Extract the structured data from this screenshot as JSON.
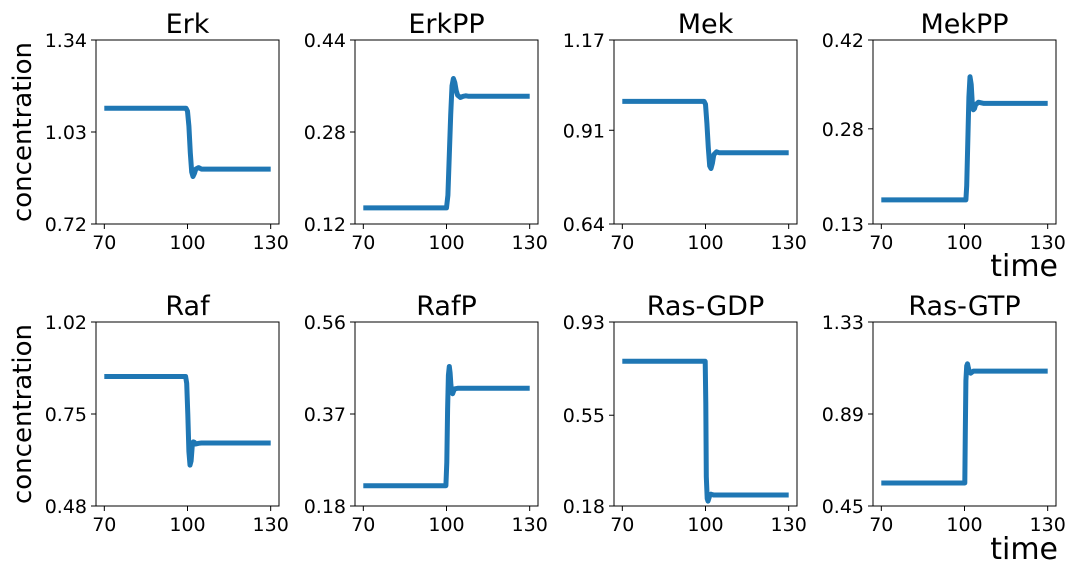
{
  "figure": {
    "ylabel": "concentration",
    "xlabel": "time",
    "line_color": "#1f77b4"
  },
  "chart_data": [
    {
      "type": "line",
      "title": "Erk",
      "xlim": [
        70,
        130
      ],
      "xticks": [
        "70",
        "100",
        "130"
      ],
      "ylim": [
        0.72,
        1.34
      ],
      "yticks": [
        "0.72",
        "1.03",
        "1.34"
      ],
      "x": [
        70,
        99.5,
        100,
        100.5,
        101,
        101.5,
        102,
        102.5,
        103,
        104,
        105,
        106,
        107,
        108,
        110,
        113,
        130
      ],
      "y": [
        1.11,
        1.11,
        1.1,
        1.05,
        0.96,
        0.895,
        0.88,
        0.89,
        0.905,
        0.91,
        0.905,
        0.905,
        0.905,
        0.905,
        0.905,
        0.905,
        0.905
      ]
    },
    {
      "type": "line",
      "title": "ErkPP",
      "xlim": [
        70,
        130
      ],
      "xticks": [
        "70",
        "100",
        "130"
      ],
      "ylim": [
        0.12,
        0.44
      ],
      "yticks": [
        "0.12",
        "0.28",
        "0.44"
      ],
      "x": [
        70,
        100,
        100.5,
        101,
        101.5,
        102,
        102.5,
        103,
        103.5,
        104,
        105,
        106,
        107,
        108,
        110,
        115,
        130
      ],
      "y": [
        0.148,
        0.148,
        0.17,
        0.24,
        0.31,
        0.36,
        0.373,
        0.366,
        0.352,
        0.344,
        0.34,
        0.342,
        0.343,
        0.342,
        0.342,
        0.342,
        0.342
      ]
    },
    {
      "type": "line",
      "title": "Mek",
      "xlim": [
        70,
        130
      ],
      "xticks": [
        "70",
        "100",
        "130"
      ],
      "ylim": [
        0.64,
        1.17
      ],
      "yticks": [
        "0.64",
        "0.91",
        "1.17"
      ],
      "x": [
        70,
        99.5,
        100,
        100.5,
        101,
        101.5,
        102,
        102.5,
        103,
        104,
        105,
        106,
        107,
        108,
        110,
        115,
        130
      ],
      "y": [
        0.993,
        0.993,
        0.985,
        0.93,
        0.86,
        0.807,
        0.8,
        0.815,
        0.84,
        0.848,
        0.845,
        0.845,
        0.845,
        0.845,
        0.845,
        0.845,
        0.845
      ]
    },
    {
      "type": "line",
      "title": "MekPP",
      "xlim": [
        70,
        130
      ],
      "xticks": [
        "70",
        "100",
        "130"
      ],
      "ylim": [
        0.13,
        0.42
      ],
      "yticks": [
        "0.13",
        "0.28",
        "0.42"
      ],
      "x": [
        70,
        100.5,
        100.8,
        101.2,
        101.6,
        102,
        102.4,
        102.8,
        103.2,
        103.6,
        104,
        105,
        106,
        107,
        108,
        110,
        130
      ],
      "y": [
        0.168,
        0.168,
        0.19,
        0.26,
        0.33,
        0.362,
        0.35,
        0.32,
        0.31,
        0.312,
        0.318,
        0.322,
        0.321,
        0.32,
        0.32,
        0.32,
        0.32
      ]
    },
    {
      "type": "line",
      "title": "Raf",
      "xlim": [
        70,
        130
      ],
      "xticks": [
        "70",
        "100",
        "130"
      ],
      "ylim": [
        0.48,
        1.02
      ],
      "yticks": [
        "0.48",
        "0.75",
        "1.02"
      ],
      "x": [
        70,
        99.3,
        99.7,
        100.1,
        100.5,
        100.9,
        101.3,
        101.7,
        102.1,
        102.5,
        103,
        104,
        105,
        106,
        108,
        110,
        130
      ],
      "y": [
        0.86,
        0.86,
        0.84,
        0.75,
        0.64,
        0.6,
        0.612,
        0.655,
        0.668,
        0.667,
        0.662,
        0.664,
        0.665,
        0.665,
        0.665,
        0.665,
        0.665
      ]
    },
    {
      "type": "line",
      "title": "RafP",
      "xlim": [
        70,
        130
      ],
      "xticks": [
        "70",
        "100",
        "130"
      ],
      "ylim": [
        0.18,
        0.56
      ],
      "yticks": [
        "0.18",
        "0.37",
        "0.56"
      ],
      "x": [
        70,
        99.8,
        100.1,
        100.4,
        100.7,
        101,
        101.3,
        101.6,
        101.9,
        102.2,
        102.6,
        103,
        104,
        105,
        106,
        108,
        130
      ],
      "y": [
        0.222,
        0.222,
        0.27,
        0.38,
        0.45,
        0.468,
        0.455,
        0.43,
        0.415,
        0.412,
        0.418,
        0.422,
        0.423,
        0.423,
        0.423,
        0.423,
        0.423
      ]
    },
    {
      "type": "line",
      "title": "Ras-GDP",
      "xlim": [
        70,
        130
      ],
      "xticks": [
        "70",
        "100",
        "130"
      ],
      "ylim": [
        0.18,
        0.93
      ],
      "yticks": [
        "0.18",
        "0.55",
        "0.93"
      ],
      "x": [
        70,
        99.9,
        100.1,
        100.3,
        100.6,
        100.9,
        101.2,
        101.6,
        102,
        102.5,
        103,
        104,
        106,
        108,
        130
      ],
      "y": [
        0.77,
        0.77,
        0.6,
        0.3,
        0.21,
        0.2,
        0.21,
        0.225,
        0.228,
        0.226,
        0.225,
        0.225,
        0.225,
        0.225,
        0.225
      ]
    },
    {
      "type": "line",
      "title": "Ras-GTP",
      "xlim": [
        70,
        130
      ],
      "xticks": [
        "70",
        "100",
        "130"
      ],
      "ylim": [
        0.45,
        1.33
      ],
      "yticks": [
        "0.45",
        "0.89",
        "1.33"
      ],
      "x": [
        70,
        100.1,
        100.3,
        100.5,
        100.8,
        101.1,
        101.4,
        101.8,
        102.2,
        102.7,
        103.2,
        104,
        106,
        108,
        130
      ],
      "y": [
        0.56,
        0.56,
        0.8,
        1.05,
        1.12,
        1.13,
        1.11,
        1.09,
        1.085,
        1.09,
        1.095,
        1.095,
        1.095,
        1.095,
        1.095
      ]
    }
  ]
}
